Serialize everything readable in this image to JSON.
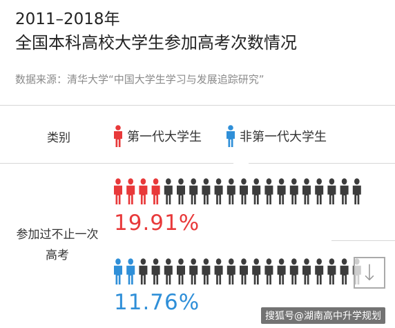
{
  "title_line1": "2011–2018年",
  "title_line2": "全国本科高校大学生参加高考次数情况",
  "source": "数据来源：清华大学“中国大学生学习与发展追踪研究”",
  "legend": {
    "category_label": "类别",
    "first_gen": "第一代大学生",
    "non_first_gen": "非第一代大学生"
  },
  "colors": {
    "first_gen": "#e8393a",
    "non_first_gen": "#2f8fd8",
    "other": "#3c3c3c"
  },
  "watermark": "搜狐号@湖南高中升学规划",
  "chart_data": {
    "type": "pictograph",
    "row_label": "参加过不止一次高考",
    "icons_per_row": 20,
    "series": [
      {
        "name": "第一代大学生",
        "value": 19.91,
        "label": "19.91%",
        "highlighted_icons": 4
      },
      {
        "name": "非第一代大学生",
        "value": 11.76,
        "label": "11.76%",
        "highlighted_icons": 2
      }
    ]
  }
}
